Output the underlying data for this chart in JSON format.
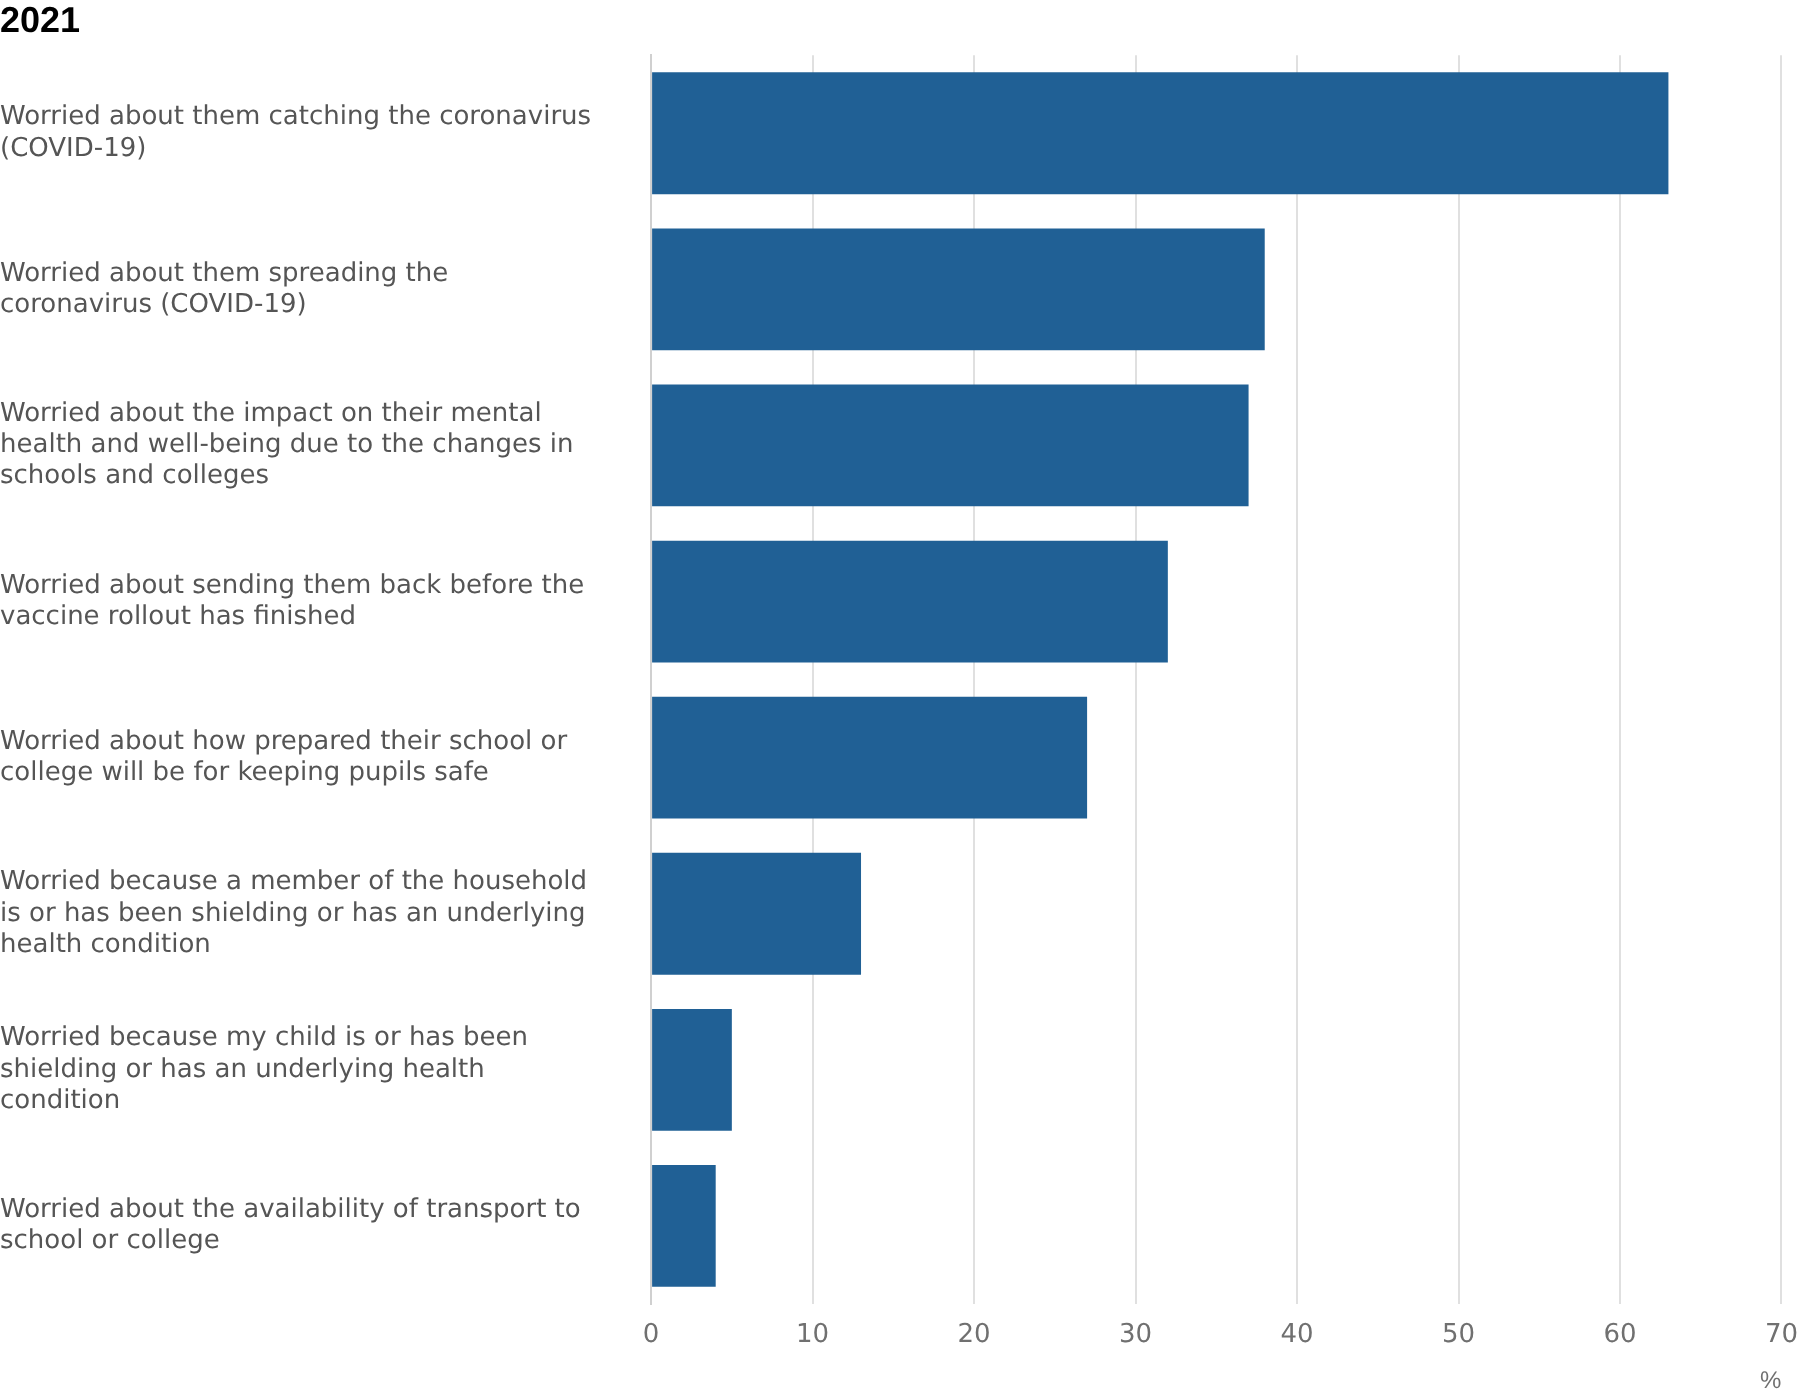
{
  "chart_data": {
    "type": "bar",
    "orientation": "horizontal",
    "title": "2021",
    "xlabel": "%",
    "categories": [
      "Worried about them catching the coronavirus (COVID-19)",
      "Worried about them spreading the coronavirus (COVID-19)",
      "Worried about the impact on their mental health and well-being due to the changes in schools and colleges",
      "Worried about sending them back before the vaccine rollout has finished",
      "Worried about how prepared their school or college will be for keeping pupils safe",
      "Worried because a member of the household is or has been shielding or has an underlying health condition",
      "Worried because my child is or has been shielding or has an underlying health condition",
      "Worried about the availability of transport to school or college"
    ],
    "values": [
      63,
      38,
      37,
      32,
      27,
      13,
      5,
      4
    ],
    "color": "#206095",
    "xlim": [
      0,
      70
    ],
    "xticks": [
      0,
      10,
      20,
      30,
      40,
      50,
      60,
      70
    ],
    "grid": "x",
    "legend": false
  }
}
